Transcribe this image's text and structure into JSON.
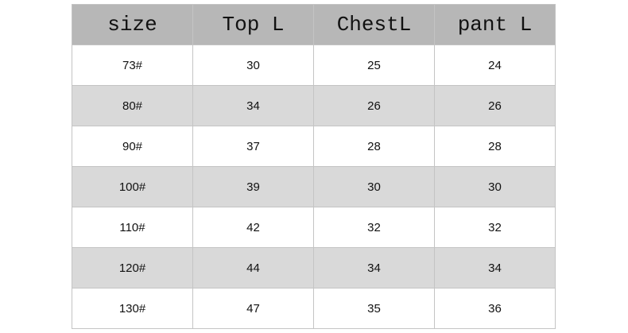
{
  "table": {
    "header": [
      "size",
      "Top L",
      "ChestL",
      "pant L"
    ],
    "rows": [
      [
        "73#",
        30,
        25,
        24
      ],
      [
        "80#",
        34,
        26,
        26
      ],
      [
        "90#",
        37,
        28,
        28
      ],
      [
        "100#",
        39,
        30,
        30
      ],
      [
        "110#",
        42,
        32,
        32
      ],
      [
        "120#",
        44,
        34,
        34
      ],
      [
        "130#",
        47,
        35,
        36
      ]
    ]
  }
}
